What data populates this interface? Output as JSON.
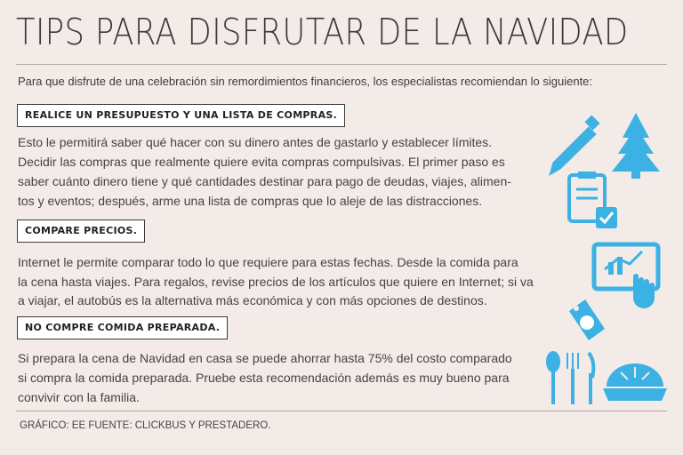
{
  "header": {
    "title": "TIPS PARA DISFRUTAR DE LA NAVIDAD"
  },
  "intro": "Para que disfrute de una celebración sin remordimientos financieros, los especialistas recomiendan lo siguiente:",
  "sections": [
    {
      "heading": "REALICE UN PRESUPUESTO Y UNA LISTA DE COMPRAS.",
      "lines": [
        "Esto le permitirá saber qué hacer con su dinero antes de gastarlo y establecer límites.",
        "Decidir las compras que realmente quiere evita compras compulsivas. El primer paso es",
        "saber cuánto dinero tiene y qué cantidades destinar para pago de deudas, viajes, alimen-",
        "tos y eventos; después, arme una lista de compras que lo aleje de las distracciones."
      ]
    },
    {
      "heading": "COMPARE PRECIOS.",
      "lines": [
        " Internet le permite comparar todo lo que requiere para estas fechas. Desde la comida para",
        "la cena hasta viajes. Para regalos, revise precios de los artículos que quiere en Internet; si va",
        "a viajar, el autobús es la alternativa más económica y con más opciones de destinos."
      ]
    },
    {
      "heading": "NO COMPRE COMIDA PREPARADA.",
      "lines": [
        "Si prepara la cena de Navidad en casa se puede ahorrar hasta 75% del costo comparado",
        "si compra la comida preparada. Pruebe esta recomendación además es muy bueno para",
        "convivir con la familia."
      ]
    }
  ],
  "footer": "GRÁFICO: EE  FUENTE: CLICKBUS Y PRESTADERO."
}
